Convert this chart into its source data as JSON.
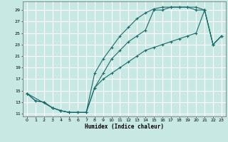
{
  "xlabel": "Humidex (Indice chaleur)",
  "bg_color": "#c8e8e4",
  "grid_color": "#ffffff",
  "line_color": "#1a6b6b",
  "xlim": [
    -0.5,
    23.5
  ],
  "ylim": [
    10.5,
    30.5
  ],
  "xtick_vals": [
    0,
    1,
    2,
    3,
    4,
    5,
    6,
    7,
    8,
    9,
    10,
    11,
    12,
    13,
    14,
    15,
    16,
    17,
    18,
    19,
    20,
    21,
    22,
    23
  ],
  "ytick_vals": [
    11,
    13,
    15,
    17,
    19,
    21,
    23,
    25,
    27,
    29
  ],
  "line1_x": [
    0,
    1,
    2,
    3,
    4,
    5,
    6,
    7,
    8,
    9,
    10,
    11,
    12,
    13,
    14,
    15,
    16,
    17,
    18,
    19,
    20,
    21,
    22,
    23
  ],
  "line1_y": [
    14.5,
    13.2,
    13.0,
    12.0,
    11.5,
    11.2,
    11.2,
    11.2,
    15.5,
    18.0,
    20.5,
    22.0,
    23.5,
    24.5,
    25.5,
    29.0,
    29.0,
    29.5,
    29.5,
    29.5,
    29.0,
    29.0,
    23.0,
    24.5
  ],
  "line2_x": [
    0,
    1,
    2,
    3,
    4,
    5,
    6,
    7,
    8,
    9,
    10,
    11,
    12,
    13,
    14,
    15,
    16,
    17,
    18,
    19,
    20,
    21,
    22,
    23
  ],
  "line2_y": [
    14.5,
    13.2,
    13.0,
    12.0,
    11.5,
    11.2,
    11.2,
    11.2,
    18.0,
    20.5,
    22.5,
    24.5,
    26.0,
    27.5,
    28.5,
    29.2,
    29.5,
    29.5,
    29.5,
    29.5,
    29.5,
    29.0,
    23.0,
    24.5
  ],
  "line3_x": [
    0,
    3,
    4,
    5,
    6,
    7,
    8,
    9,
    10,
    11,
    12,
    13,
    14,
    15,
    16,
    17,
    18,
    19,
    20,
    21,
    22,
    23
  ],
  "line3_y": [
    14.5,
    12.0,
    11.5,
    11.2,
    11.2,
    11.2,
    15.5,
    17.0,
    18.0,
    19.0,
    20.0,
    21.0,
    22.0,
    22.5,
    23.0,
    23.5,
    24.0,
    24.5,
    25.0,
    29.0,
    23.0,
    24.5
  ]
}
